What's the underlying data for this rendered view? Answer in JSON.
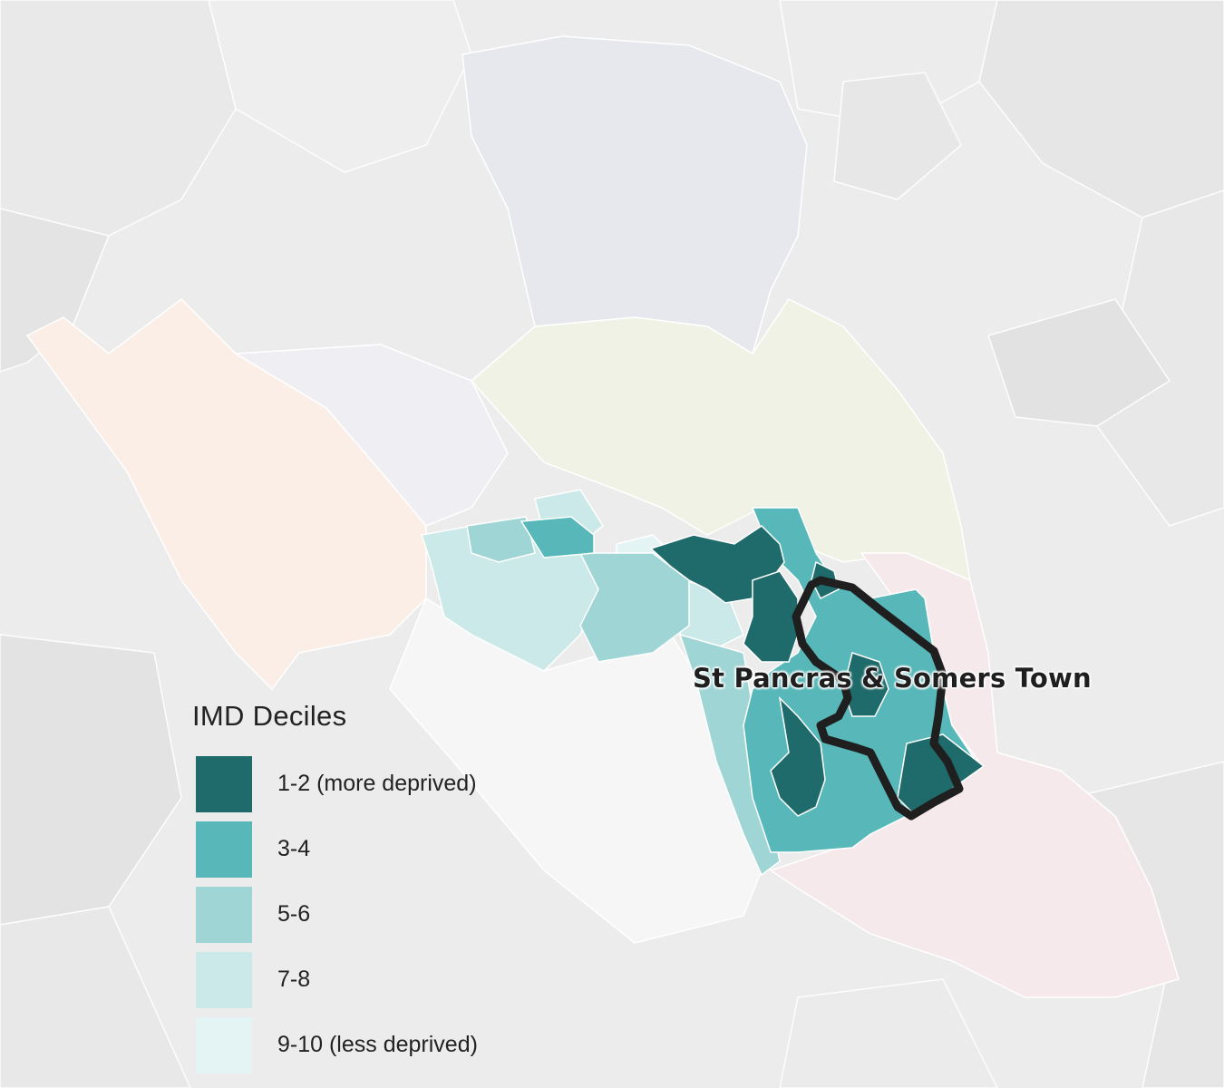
{
  "map": {
    "area_label": "St Pancras & Somers Town",
    "colors": {
      "background": "#ececec",
      "boundary_lines": "#ffffff",
      "highlight_outline": "#1f1f1f",
      "faded_ward_orange": "#fbeee6",
      "faded_ward_lavender": "#e7e7ee",
      "faded_ward_olive": "#f1f2e6",
      "faded_ward_pink": "#f6e9ec",
      "faded_ward_white": "#f6f6f6"
    }
  },
  "legend": {
    "title": "IMD Deciles",
    "items": [
      {
        "label": "1-2 (more deprived)",
        "color": "#1f6b6b"
      },
      {
        "label": "3-4",
        "color": "#58b8b9"
      },
      {
        "label": "5-6",
        "color": "#9fd6d5"
      },
      {
        "label": "7-8",
        "color": "#cae9e8"
      },
      {
        "label": "9-10 (less deprived)",
        "color": "#e4f3f3"
      }
    ]
  }
}
